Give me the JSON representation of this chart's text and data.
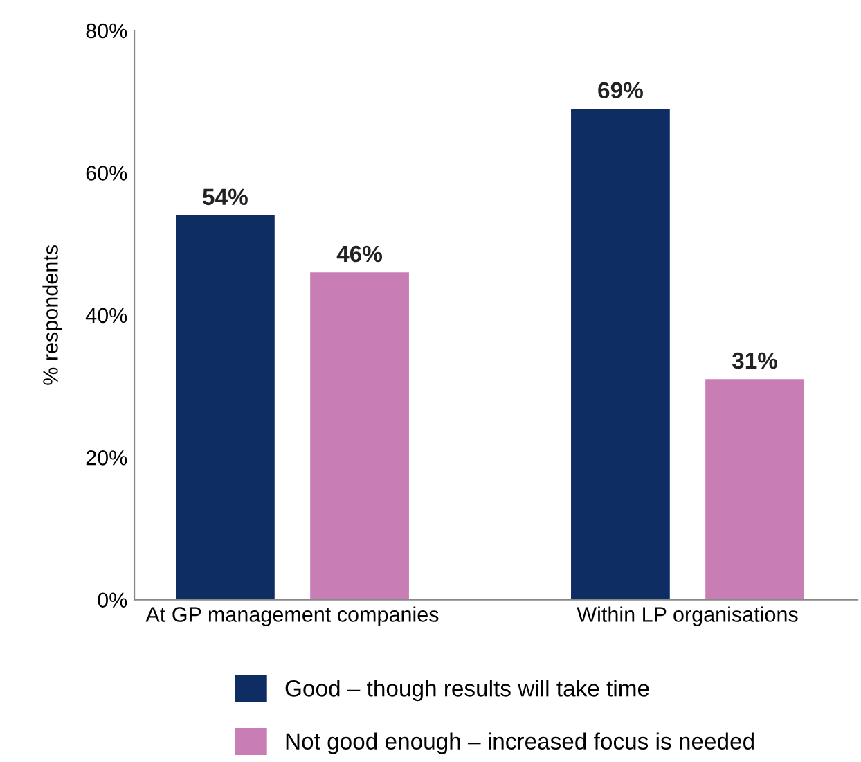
{
  "chart_data": {
    "type": "bar",
    "ylabel": "% respondents",
    "categories": [
      "At GP management companies",
      "Within LP organisations"
    ],
    "series": [
      {
        "name": "Good – though results will take time",
        "color": "#0e2d63",
        "values": [
          54,
          69
        ],
        "value_labels": [
          "54%",
          "69%"
        ]
      },
      {
        "name": "Not good enough – increased focus is needed",
        "color": "#c87db4",
        "values": [
          46,
          31
        ],
        "value_labels": [
          "46%",
          "31%"
        ]
      }
    ],
    "ylim": [
      0,
      80
    ],
    "yticks": [
      {
        "value": 0,
        "label": "0%"
      },
      {
        "value": 20,
        "label": "20%"
      },
      {
        "value": 40,
        "label": "40%"
      },
      {
        "value": 60,
        "label": "60%"
      },
      {
        "value": 80,
        "label": "80%"
      }
    ],
    "grid": false,
    "legend": "bottom"
  }
}
